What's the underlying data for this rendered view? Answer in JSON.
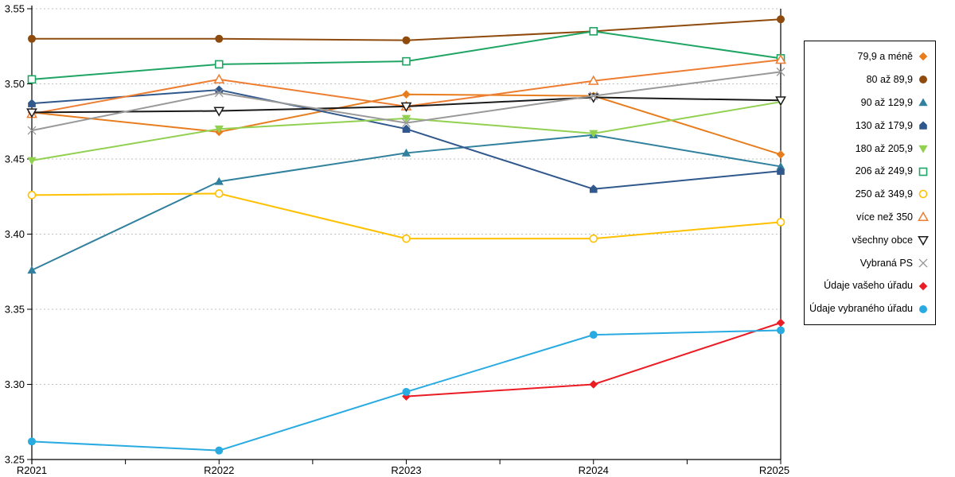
{
  "chart_data": {
    "type": "line",
    "title": "",
    "xlabel": "",
    "ylabel": "",
    "categories": [
      "R2021",
      "R2022",
      "R2023",
      "R2024",
      "R2025"
    ],
    "ylim": [
      3.25,
      3.55
    ],
    "ytick_labels": [
      "3.55",
      "3.50",
      "3.45",
      "3.40",
      "3.35",
      "3.30",
      "3.25"
    ],
    "grid": "horizontal-dashed",
    "grid_color": "#BFBFBF",
    "axis_color": "#000000",
    "legend_position": "right",
    "series": [
      {
        "name": "79,9 a méně",
        "color": "#E87D1E",
        "marker": "diamond",
        "values": [
          3.481,
          3.468,
          3.493,
          3.492,
          3.453
        ]
      },
      {
        "name": "80 až 89,9",
        "color": "#8F4B0E",
        "marker": "circle",
        "values": [
          3.53,
          3.53,
          3.529,
          3.535,
          3.543
        ]
      },
      {
        "name": "90 až 129,9",
        "color": "#31809D",
        "marker": "triangle-up",
        "values": [
          3.376,
          3.435,
          3.454,
          3.466,
          3.445
        ]
      },
      {
        "name": "130 až 179,9",
        "color": "#30588C",
        "marker": "pentagon",
        "values": [
          3.487,
          3.496,
          3.47,
          3.43,
          3.442
        ]
      },
      {
        "name": "180 až 205,9",
        "color": "#92D050",
        "marker": "triangle-down",
        "values": [
          3.449,
          3.47,
          3.477,
          3.467,
          3.488
        ]
      },
      {
        "name": "206 až 249,9",
        "color": "#1FA563",
        "marker": "square-open",
        "values": [
          3.503,
          3.513,
          3.515,
          3.535,
          3.517
        ]
      },
      {
        "name": "250 až 349,9",
        "color": "#FFC000",
        "marker": "circle-open",
        "values": [
          3.426,
          3.427,
          3.397,
          3.397,
          3.408
        ]
      },
      {
        "name": "více než 350",
        "color": "#ED7D31",
        "marker": "triangle-up-open",
        "values": [
          3.48,
          3.503,
          3.485,
          3.502,
          3.516
        ]
      },
      {
        "name": "všechny obce",
        "color": "#1A1A1A",
        "marker": "triangle-down-open",
        "values": [
          3.481,
          3.482,
          3.485,
          3.491,
          3.489
        ]
      },
      {
        "name": "Vybraná PS",
        "color": "#999999",
        "marker": "x",
        "values": [
          3.469,
          3.494,
          3.474,
          3.492,
          3.508
        ]
      },
      {
        "name": "Údaje vašeho úřadu",
        "color": "#EC1C24",
        "marker": "diamond",
        "values": [
          null,
          null,
          3.292,
          3.3,
          3.341
        ]
      },
      {
        "name": "Údaje vybraného úřadu",
        "color": "#29ABE2",
        "marker": "circle",
        "values": [
          3.262,
          3.256,
          3.295,
          3.333,
          3.336
        ]
      }
    ]
  }
}
